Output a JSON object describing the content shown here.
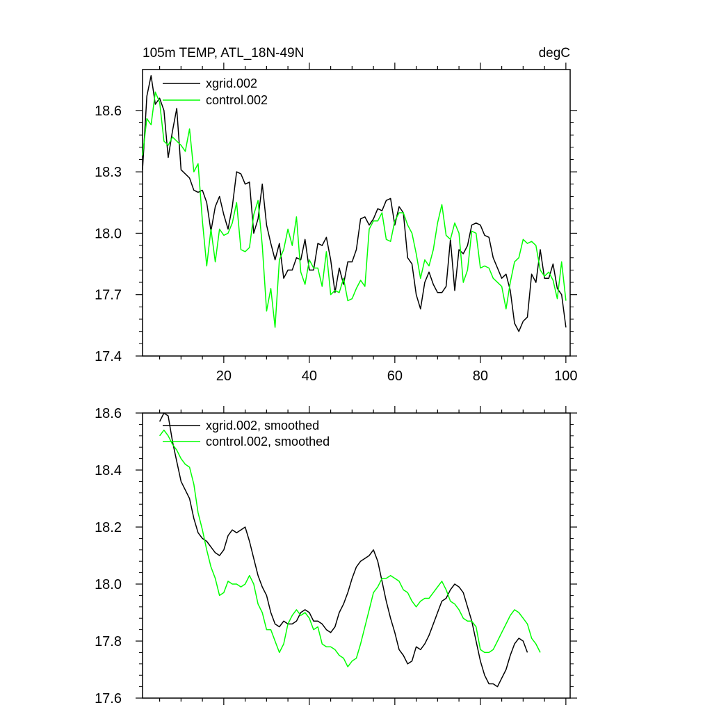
{
  "chart_data": [
    {
      "type": "line",
      "title_left": "105m TEMP, ATL_18N-49N",
      "title_right": "degC",
      "xlabel": "",
      "ylabel": "",
      "xlim": [
        1,
        101
      ],
      "ylim": [
        17.4,
        18.8
      ],
      "xticks": [
        20,
        40,
        60,
        80,
        100
      ],
      "yticks": [
        17.4,
        17.7,
        18.0,
        18.3,
        18.6
      ],
      "ytick_labels": [
        "17.4",
        "17.7",
        "18.0",
        "18.3",
        "18.6"
      ],
      "legend": "top-left",
      "x_start": 1,
      "series": [
        {
          "name": "xgrid.002",
          "color": "#000000",
          "values": [
            18.31,
            18.67,
            18.77,
            18.63,
            18.66,
            18.6,
            18.37,
            18.5,
            18.61,
            18.31,
            18.29,
            18.27,
            18.21,
            18.2,
            18.21,
            18.15,
            18.01,
            18.13,
            18.18,
            18.09,
            18.02,
            18.13,
            18.3,
            18.29,
            18.24,
            18.25,
            18.0,
            18.07,
            18.24,
            18.04,
            17.95,
            17.87,
            17.95,
            17.78,
            17.82,
            17.82,
            17.88,
            17.87,
            17.97,
            17.82,
            17.82,
            17.95,
            17.94,
            17.98,
            17.87,
            17.71,
            17.83,
            17.75,
            17.86,
            17.86,
            17.92,
            18.07,
            18.08,
            18.04,
            18.07,
            18.12,
            18.11,
            18.16,
            18.17,
            18.04,
            18.13,
            18.1,
            17.88,
            17.85,
            17.7,
            17.63,
            17.76,
            17.81,
            17.75,
            17.71,
            17.71,
            17.74,
            17.97,
            17.72,
            17.92,
            17.9,
            17.94,
            18.04,
            18.05,
            18.04,
            17.99,
            17.98,
            17.88,
            17.83,
            17.78,
            17.8,
            17.72,
            17.56,
            17.52,
            17.57,
            17.59,
            17.8,
            17.76,
            17.92,
            17.78,
            17.78,
            17.85,
            17.73,
            17.7,
            17.54
          ]
        },
        {
          "name": "control.002",
          "color": "#00ff00",
          "values": [
            18.38,
            18.56,
            18.53,
            18.69,
            18.64,
            18.45,
            18.43,
            18.47,
            18.45,
            18.43,
            18.4,
            18.51,
            18.3,
            18.34,
            18.06,
            17.84,
            18.02,
            17.86,
            18.02,
            17.99,
            18.0,
            18.05,
            18.15,
            17.92,
            17.91,
            17.93,
            18.09,
            18.16,
            17.94,
            17.62,
            17.73,
            17.54,
            17.87,
            17.92,
            18.02,
            17.94,
            18.08,
            17.81,
            17.75,
            17.87,
            17.83,
            17.83,
            17.74,
            17.91,
            17.7,
            17.72,
            17.71,
            17.78,
            17.67,
            17.68,
            17.73,
            17.77,
            17.74,
            18.02,
            18.06,
            18.06,
            18.1,
            17.97,
            17.96,
            18.06,
            18.1,
            18.1,
            18.04,
            18.0,
            17.9,
            17.78,
            17.87,
            17.84,
            17.92,
            18.05,
            18.14,
            17.99,
            17.97,
            18.05,
            18.0,
            17.76,
            17.82,
            18.01,
            18.0,
            17.83,
            17.84,
            17.83,
            17.78,
            17.76,
            17.74,
            17.63,
            17.76,
            17.86,
            17.88,
            17.97,
            17.95,
            17.96,
            17.94,
            17.82,
            17.79,
            17.81,
            17.77,
            17.68,
            17.86,
            17.67
          ]
        }
      ]
    },
    {
      "type": "line",
      "xlabel": "",
      "ylabel": "",
      "xlim": [
        1,
        101
      ],
      "ylim": [
        17.6,
        18.6
      ],
      "yticks": [
        17.6,
        17.8,
        18.0,
        18.2,
        18.4,
        18.6
      ],
      "ytick_labels": [
        "17.6",
        "17.8",
        "18.0",
        "18.2",
        "18.4",
        "18.6"
      ],
      "legend": "top-left",
      "x_start": 5,
      "series": [
        {
          "name": "xgrid.002, smoothed",
          "color": "#000000",
          "values": [
            18.57,
            18.6,
            18.59,
            18.5,
            18.43,
            18.36,
            18.33,
            18.3,
            18.23,
            18.18,
            18.16,
            18.15,
            18.13,
            18.11,
            18.1,
            18.12,
            18.17,
            18.19,
            18.18,
            18.19,
            18.2,
            18.15,
            18.09,
            18.03,
            17.99,
            17.96,
            17.9,
            17.86,
            17.85,
            17.87,
            17.86,
            17.86,
            17.87,
            17.9,
            17.91,
            17.9,
            17.87,
            17.87,
            17.86,
            17.84,
            17.83,
            17.85,
            17.9,
            17.93,
            17.97,
            18.02,
            18.06,
            18.08,
            18.09,
            18.1,
            18.12,
            18.08,
            18.01,
            17.94,
            17.88,
            17.83,
            17.77,
            17.75,
            17.72,
            17.73,
            17.78,
            17.77,
            17.79,
            17.82,
            17.86,
            17.9,
            17.94,
            17.95,
            17.98,
            18.0,
            17.99,
            17.97,
            17.92,
            17.87,
            17.8,
            17.73,
            17.68,
            17.65,
            17.65,
            17.64,
            17.67,
            17.7,
            17.75,
            17.79,
            17.81,
            17.8,
            17.76
          ]
        },
        {
          "name": "control.002, smoothed",
          "color": "#00ff00",
          "values": [
            18.52,
            18.54,
            18.52,
            18.49,
            18.47,
            18.44,
            18.42,
            18.41,
            18.35,
            18.25,
            18.19,
            18.12,
            18.06,
            18.02,
            17.96,
            17.97,
            18.01,
            18.0,
            18.0,
            17.99,
            18.0,
            18.03,
            18.0,
            17.93,
            17.9,
            17.84,
            17.84,
            17.8,
            17.76,
            17.79,
            17.86,
            17.89,
            17.91,
            17.89,
            17.9,
            17.88,
            17.84,
            17.85,
            17.79,
            17.78,
            17.78,
            17.77,
            17.75,
            17.74,
            17.71,
            17.73,
            17.74,
            17.79,
            17.85,
            17.91,
            17.97,
            17.99,
            18.02,
            18.02,
            18.03,
            18.02,
            18.01,
            17.98,
            17.97,
            17.94,
            17.92,
            17.94,
            17.95,
            17.95,
            17.97,
            17.99,
            18.01,
            17.98,
            17.94,
            17.93,
            17.91,
            17.88,
            17.87,
            17.87,
            17.85,
            17.77,
            17.76,
            17.76,
            17.77,
            17.8,
            17.83,
            17.86,
            17.89,
            17.91,
            17.9,
            17.88,
            17.86,
            17.81,
            17.79,
            17.76
          ]
        }
      ]
    }
  ]
}
